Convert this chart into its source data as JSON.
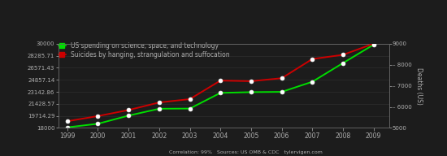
{
  "years": [
    1999,
    2000,
    2001,
    2002,
    2003,
    2004,
    2005,
    2006,
    2007,
    2008,
    2009
  ],
  "spending": [
    18079,
    18594,
    19753,
    20734,
    20755,
    22991,
    23097,
    23134,
    24576,
    27237,
    29860
  ],
  "suicides": [
    5317,
    5563,
    5849,
    6209,
    6368,
    7248,
    7219,
    7361,
    8272,
    8471,
    9000
  ],
  "spending_color": "#00dd00",
  "suicide_color": "#cc0000",
  "bg_color": "#1c1c1c",
  "text_color": "#b0b0b0",
  "legend_label_1": "US spending on science, space, and technology",
  "legend_label_2": "Suicides by hanging, strangulation and suffocation",
  "ylabel_right": "Deaths (US)",
  "yticks_left": [
    18000,
    19714.29,
    21428.57,
    23142.86,
    24857.14,
    26571.43,
    28285.71,
    30000
  ],
  "ytick_left_labels": [
    "18000",
    "19714.29",
    "21428.57",
    "23142.86",
    "24857.14",
    "26571.43",
    "28285.71",
    "30000"
  ],
  "yticks_right": [
    5000,
    6000,
    7000,
    8000,
    9000
  ],
  "ytick_right_labels": [
    "5000",
    "– 6000",
    "– 7000",
    "– 8000",
    "9000"
  ],
  "ylim_left": [
    18000,
    30000
  ],
  "ylim_right": [
    5000,
    9000
  ],
  "footer_text": "Correlation: 99%   Sources: US OMB & CDC   tylervigen.com"
}
